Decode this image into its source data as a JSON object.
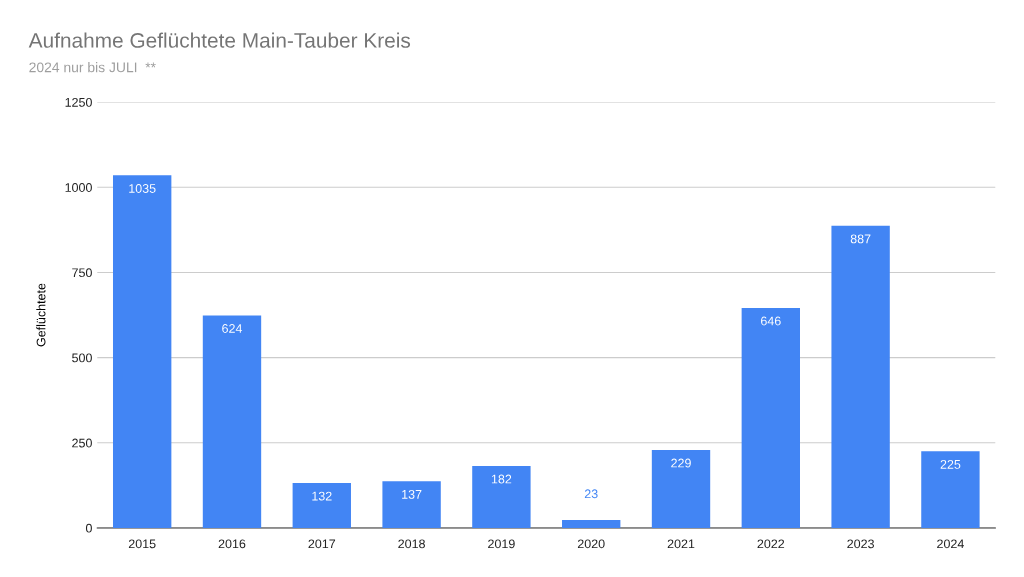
{
  "chart_data": {
    "type": "bar",
    "title": "Aufnahme Geflüchtete Main-Tauber Kreis",
    "subtitle": "2024 nur bis JULI  **",
    "ylabel": "Geflüchtete",
    "categories": [
      "2015",
      "2016",
      "2017",
      "2018",
      "2019",
      "2020",
      "2021",
      "2022",
      "2023",
      "2024"
    ],
    "values": [
      1035,
      624,
      132,
      137,
      182,
      23,
      229,
      646,
      887,
      225
    ],
    "color": "#4285f4",
    "ylim": [
      0,
      1250
    ],
    "yticks": [
      0,
      250,
      500,
      750,
      1000,
      1250
    ],
    "grid": "y",
    "data_labels": true,
    "legend": false
  }
}
